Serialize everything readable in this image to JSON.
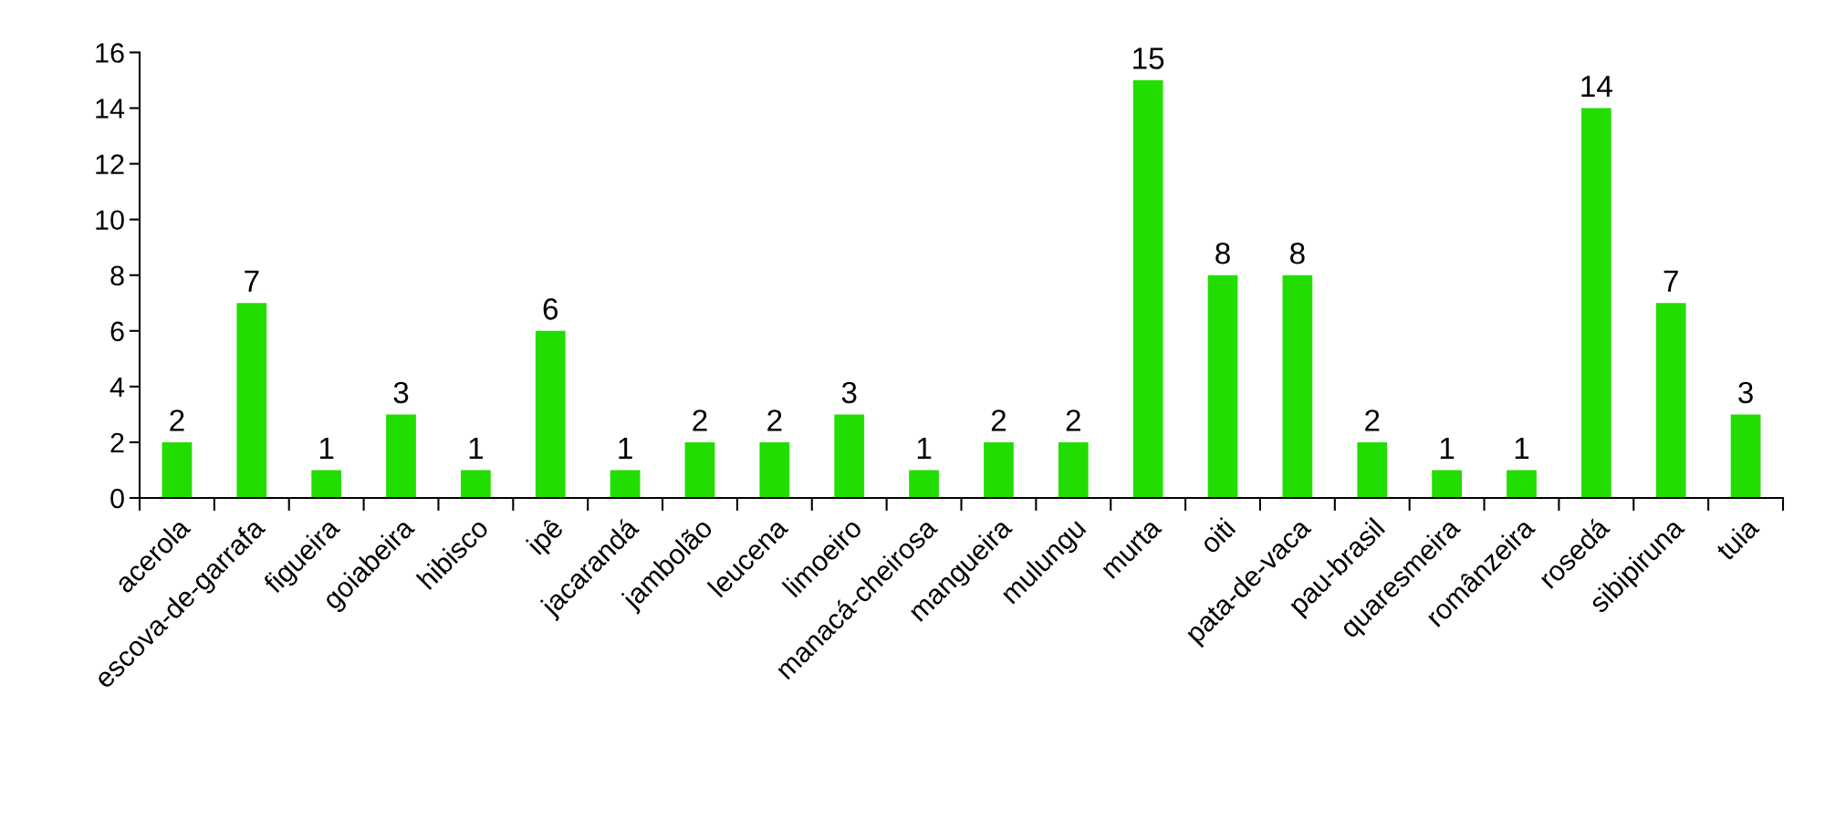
{
  "chart_data": {
    "type": "bar",
    "categories": [
      "acerola",
      "escova-de-garrafa",
      "figueira",
      "goiabeira",
      "hibisco",
      "ipê",
      "jacarandá",
      "jambolão",
      "leucena",
      "limoeiro",
      "manacá-cheirosa",
      "mangueira",
      "mulungu",
      "murta",
      "oiti",
      "pata-de-vaca",
      "pau-brasil",
      "quaresmeira",
      "românzeira",
      "rosedá",
      "sibipiruna",
      "tuia"
    ],
    "values": [
      2,
      7,
      1,
      3,
      1,
      6,
      1,
      2,
      2,
      3,
      1,
      2,
      2,
      15,
      8,
      8,
      2,
      1,
      1,
      14,
      7,
      3
    ],
    "color": "#22dd00",
    "ylim": [
      0,
      16
    ],
    "yticks": [
      0,
      2,
      4,
      6,
      8,
      10,
      12,
      14,
      16
    ],
    "data_labels": true,
    "grid": false,
    "legend": false
  }
}
